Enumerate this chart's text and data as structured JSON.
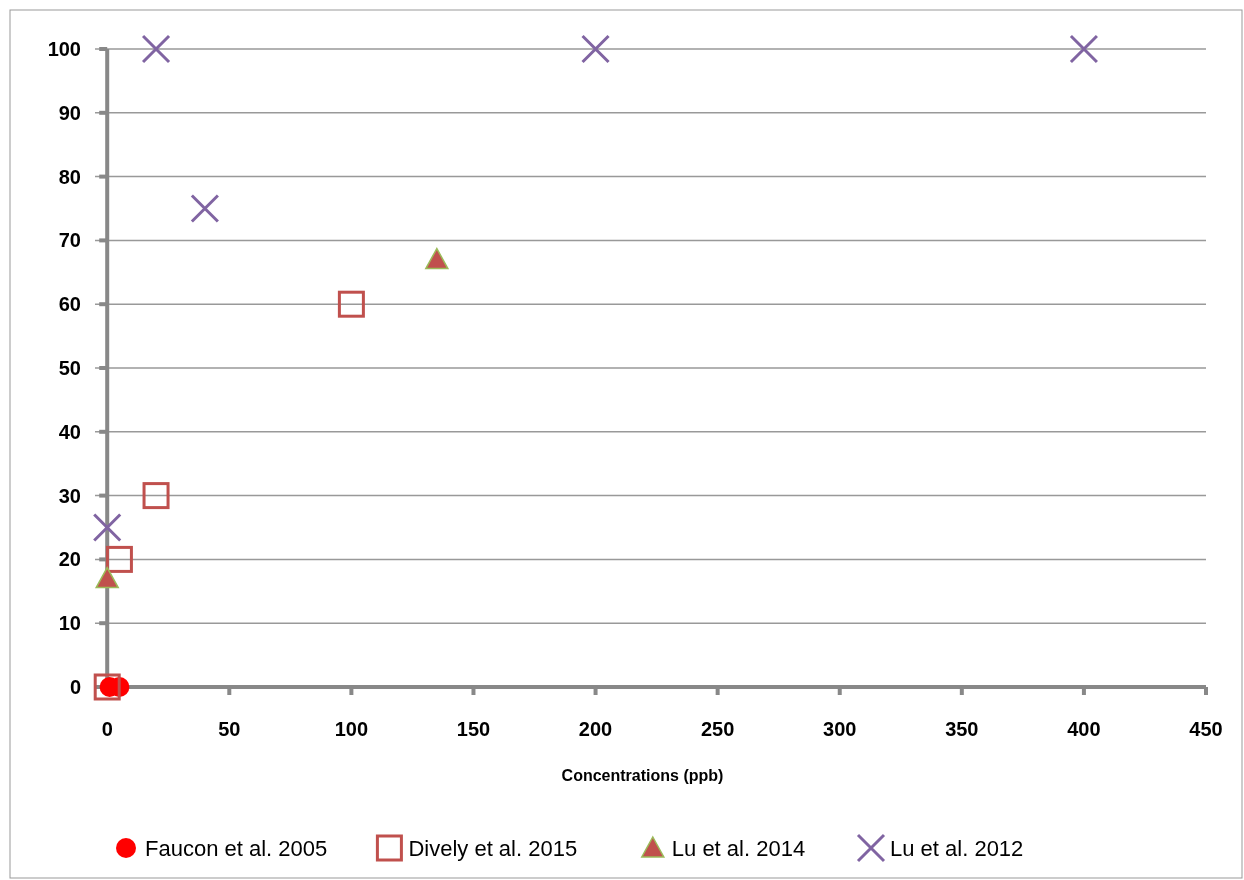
{
  "chart_data": {
    "type": "scatter",
    "xlabel": "Concentrations (ppb)",
    "xlim": [
      -5,
      450
    ],
    "xticks": [
      0,
      50,
      100,
      150,
      200,
      250,
      300,
      350,
      400,
      450
    ],
    "ylim": [
      0,
      100
    ],
    "yticks": [
      0,
      10,
      20,
      30,
      40,
      50,
      60,
      70,
      80,
      90,
      100
    ],
    "grid": "y",
    "legend": "bottom",
    "series": [
      {
        "name": "Faucon et al. 2005",
        "color": "#ff0000",
        "marker": "circle",
        "x": [
          1,
          5
        ],
        "values": [
          0,
          0
        ]
      },
      {
        "name": "Dively et al. 2015",
        "color": "#c0504d",
        "marker": "square",
        "x": [
          0,
          5,
          20,
          100
        ],
        "values": [
          0,
          20,
          30,
          60
        ]
      },
      {
        "name": "Lu et al. 2014",
        "color": "#c0504d",
        "marker": "triangle",
        "x": [
          0,
          135
        ],
        "values": [
          17,
          67
        ]
      },
      {
        "name": "Lu et al. 2012",
        "color": "#8064a2",
        "marker": "cross",
        "x": [
          0,
          20,
          40,
          200,
          400
        ],
        "values": [
          25,
          100,
          75,
          100,
          100
        ]
      }
    ]
  }
}
